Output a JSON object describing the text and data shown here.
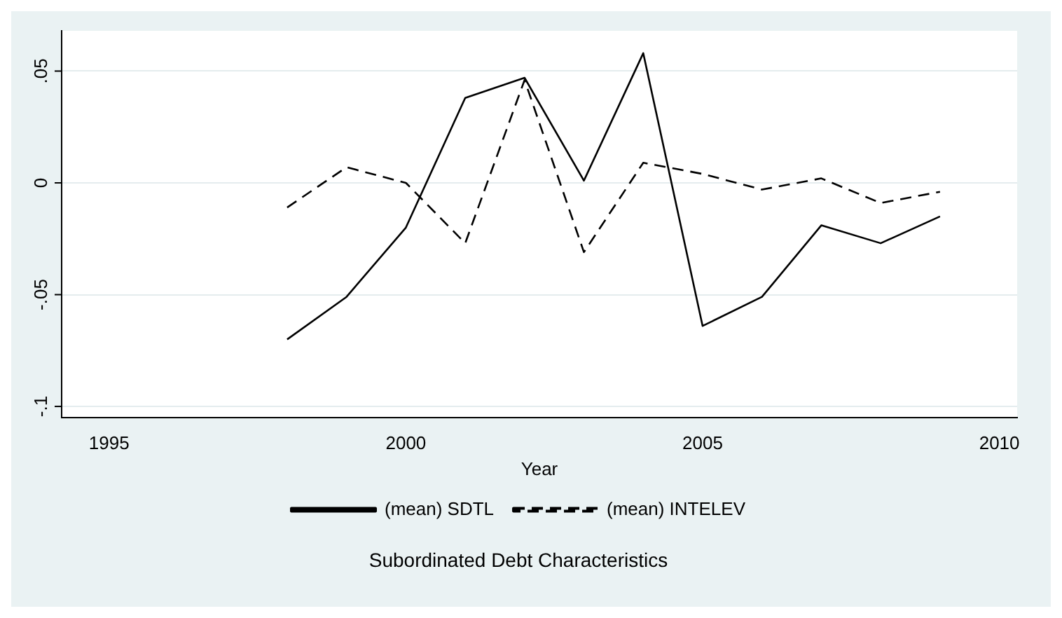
{
  "chart_data": {
    "type": "line",
    "title": "Subordinated Debt Characteristics",
    "xlabel": "Year",
    "x": [
      1998,
      1999,
      2000,
      2001,
      2002,
      2003,
      2004,
      2005,
      2006,
      2007,
      2008,
      2009
    ],
    "series": [
      {
        "name": "(mean) SDTL",
        "color": "#000000",
        "line_style": "solid",
        "values": [
          -0.07,
          -0.051,
          -0.02,
          0.038,
          0.047,
          0.001,
          0.058,
          -0.064,
          -0.051,
          -0.019,
          -0.027,
          -0.015
        ]
      },
      {
        "name": "(mean) INTELEV",
        "color": "#000000",
        "line_style": "dashed",
        "values": [
          -0.011,
          0.007,
          0.0,
          -0.027,
          0.046,
          -0.031,
          0.009,
          0.004,
          -0.003,
          0.002,
          -0.009,
          -0.004
        ]
      }
    ],
    "xlim": [
      1994.2,
      2010.3
    ],
    "xticks": [
      1995,
      2000,
      2005,
      2010
    ],
    "ylim": [
      -0.105,
      0.068
    ],
    "yticks": [
      {
        "value": -0.1,
        "label": "-.1"
      },
      {
        "value": -0.05,
        "label": "-.05"
      },
      {
        "value": 0,
        "label": "0"
      },
      {
        "value": 0.05,
        "label": ".05"
      }
    ],
    "grid": "y",
    "legend": "bottom",
    "marker": "none"
  }
}
